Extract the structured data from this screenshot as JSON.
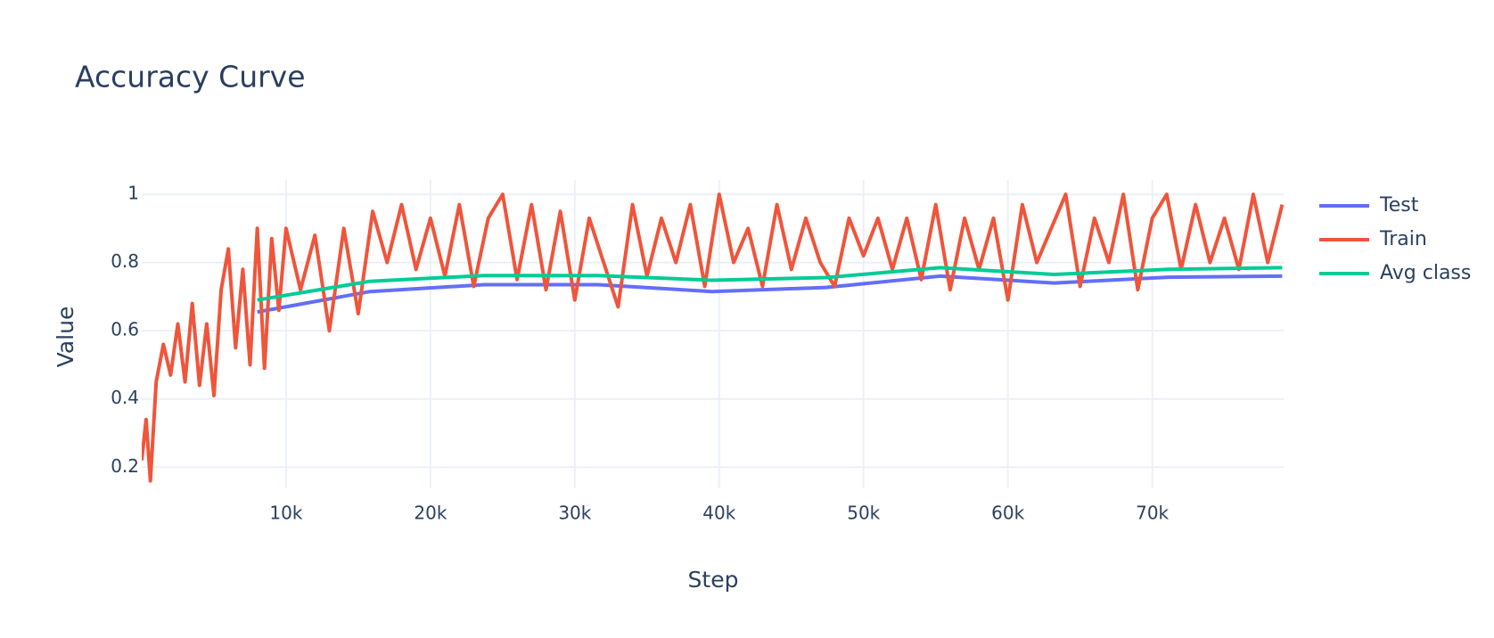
{
  "chart_data": {
    "type": "line",
    "title": "Accuracy Curve",
    "x_label": "Step",
    "y_label": "Value",
    "xlim": [
      0,
      79100
    ],
    "ylim": [
      0.138,
      1.042
    ],
    "xticks": [
      {
        "value": 10000,
        "label": "10k"
      },
      {
        "value": 20000,
        "label": "20k"
      },
      {
        "value": 30000,
        "label": "30k"
      },
      {
        "value": 40000,
        "label": "40k"
      },
      {
        "value": 50000,
        "label": "50k"
      },
      {
        "value": 60000,
        "label": "60k"
      },
      {
        "value": 70000,
        "label": "70k"
      }
    ],
    "yticks": [
      0.2,
      0.4,
      0.6,
      0.8,
      1
    ],
    "grid": true,
    "legend": "right",
    "series": [
      {
        "name": "Test",
        "color": "#636efa",
        "x": [
          8000,
          15800,
          23700,
          31600,
          39500,
          47400,
          55300,
          63200,
          71100,
          79000
        ],
        "values": [
          0.655,
          0.715,
          0.735,
          0.735,
          0.715,
          0.727,
          0.76,
          0.74,
          0.757,
          0.76
        ]
      },
      {
        "name": "Train",
        "color": "#ef553b",
        "x": [
          0,
          300,
          600,
          1000,
          1500,
          2000,
          2500,
          3000,
          3500,
          4000,
          4500,
          5000,
          5500,
          6000,
          6500,
          7000,
          7500,
          8000,
          8500,
          9000,
          9500,
          10000,
          11000,
          12000,
          13000,
          14000,
          15000,
          16000,
          17000,
          18000,
          19000,
          20000,
          21000,
          22000,
          23000,
          24000,
          25000,
          26000,
          27000,
          28000,
          29000,
          30000,
          31000,
          32000,
          33000,
          34000,
          35000,
          36000,
          37000,
          38000,
          39000,
          40000,
          41000,
          42000,
          43000,
          44000,
          45000,
          46000,
          47000,
          48000,
          49000,
          50000,
          51000,
          52000,
          53000,
          54000,
          55000,
          56000,
          57000,
          58000,
          59000,
          60000,
          61000,
          62000,
          63000,
          64000,
          65000,
          66000,
          67000,
          68000,
          69000,
          70000,
          71000,
          72000,
          73000,
          74000,
          75000,
          76000,
          77000,
          78000,
          79000
        ],
        "values": [
          0.22,
          0.34,
          0.16,
          0.45,
          0.56,
          0.47,
          0.62,
          0.45,
          0.68,
          0.44,
          0.62,
          0.41,
          0.72,
          0.84,
          0.55,
          0.78,
          0.5,
          0.9,
          0.49,
          0.87,
          0.66,
          0.9,
          0.72,
          0.88,
          0.6,
          0.9,
          0.65,
          0.95,
          0.8,
          0.97,
          0.78,
          0.93,
          0.76,
          0.97,
          0.73,
          0.93,
          1.0,
          0.75,
          0.97,
          0.72,
          0.95,
          0.69,
          0.93,
          0.8,
          0.67,
          0.97,
          0.76,
          0.93,
          0.8,
          0.97,
          0.73,
          1.0,
          0.8,
          0.9,
          0.73,
          0.97,
          0.78,
          0.93,
          0.8,
          0.73,
          0.93,
          0.82,
          0.93,
          0.78,
          0.93,
          0.75,
          0.97,
          0.72,
          0.93,
          0.78,
          0.93,
          0.69,
          0.97,
          0.8,
          0.9,
          1.0,
          0.73,
          0.93,
          0.8,
          1.0,
          0.72,
          0.93,
          1.0,
          0.78,
          0.97,
          0.8,
          0.93,
          0.78,
          1.0,
          0.8,
          0.97
        ]
      },
      {
        "name": "Avg class",
        "color": "#00cc96",
        "x": [
          8000,
          15800,
          23700,
          31600,
          39500,
          47400,
          55300,
          63200,
          71100,
          79000
        ],
        "values": [
          0.69,
          0.745,
          0.762,
          0.762,
          0.748,
          0.756,
          0.785,
          0.765,
          0.78,
          0.785
        ]
      }
    ]
  }
}
